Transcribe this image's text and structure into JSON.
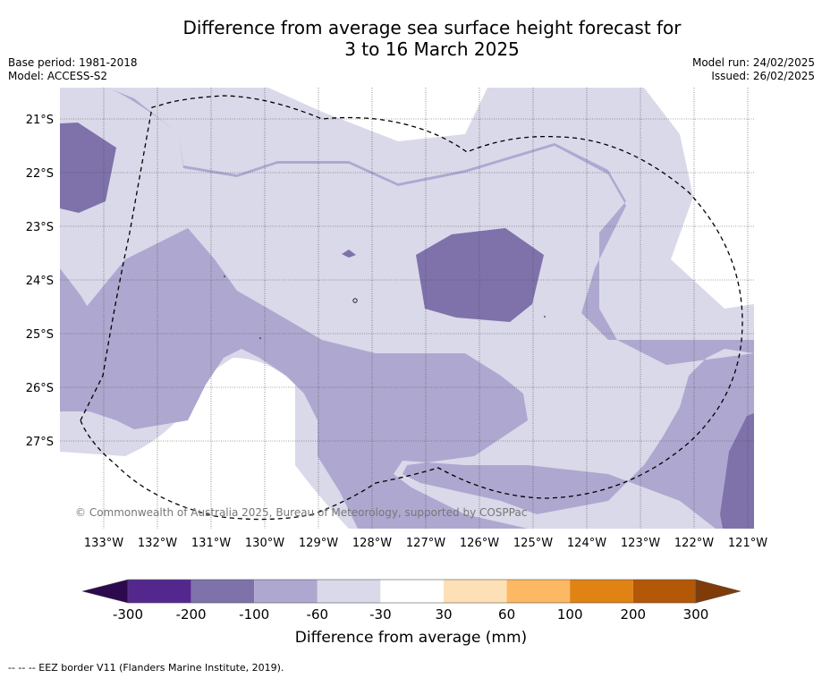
{
  "title": {
    "line1": "Difference from average sea surface height forecast for",
    "line2": "3 to 16 March 2025"
  },
  "meta": {
    "base_period": "Base period: 1981-2018",
    "model": "Model: ACCESS-S2",
    "model_run": "Model run: 24/02/2025",
    "issued": "Issued: 26/02/2025"
  },
  "map": {
    "lat_labels": [
      "21°S",
      "22°S",
      "23°S",
      "24°S",
      "25°S",
      "26°S",
      "27°S"
    ],
    "lon_labels": [
      "133°W",
      "132°W",
      "131°W",
      "130°W",
      "129°W",
      "128°W",
      "127°W",
      "126°W",
      "125°W",
      "124°W",
      "123°W",
      "122°W",
      "121°W"
    ],
    "copyright": "© Commonwealth of Australia 2025, Bureau of Meteorology, supported by COSPPac",
    "colors": {
      "band_m100_m60": "#aea8d0",
      "band_m60_m30": "#d9d9ea",
      "band_m200_m100": "#7f72ab",
      "gridline": "#444444",
      "eez_line": "#000000"
    }
  },
  "colorbar": {
    "title": "Difference from average (mm)",
    "ticks": [
      "-300",
      "-200",
      "-100",
      "-60",
      "-30",
      "30",
      "60",
      "100",
      "200",
      "300"
    ],
    "colors": [
      "#54278f",
      "#7f72ab",
      "#aea8d0",
      "#d9d9ea",
      "#ffffff",
      "#fee0b6",
      "#fdb863",
      "#e08214",
      "#b35806"
    ],
    "under_color": "#2d0a4e",
    "over_color": "#7f3b08"
  },
  "footnote": "-- -- -- EEZ border V11 (Flanders Marine Institute, 2019)."
}
